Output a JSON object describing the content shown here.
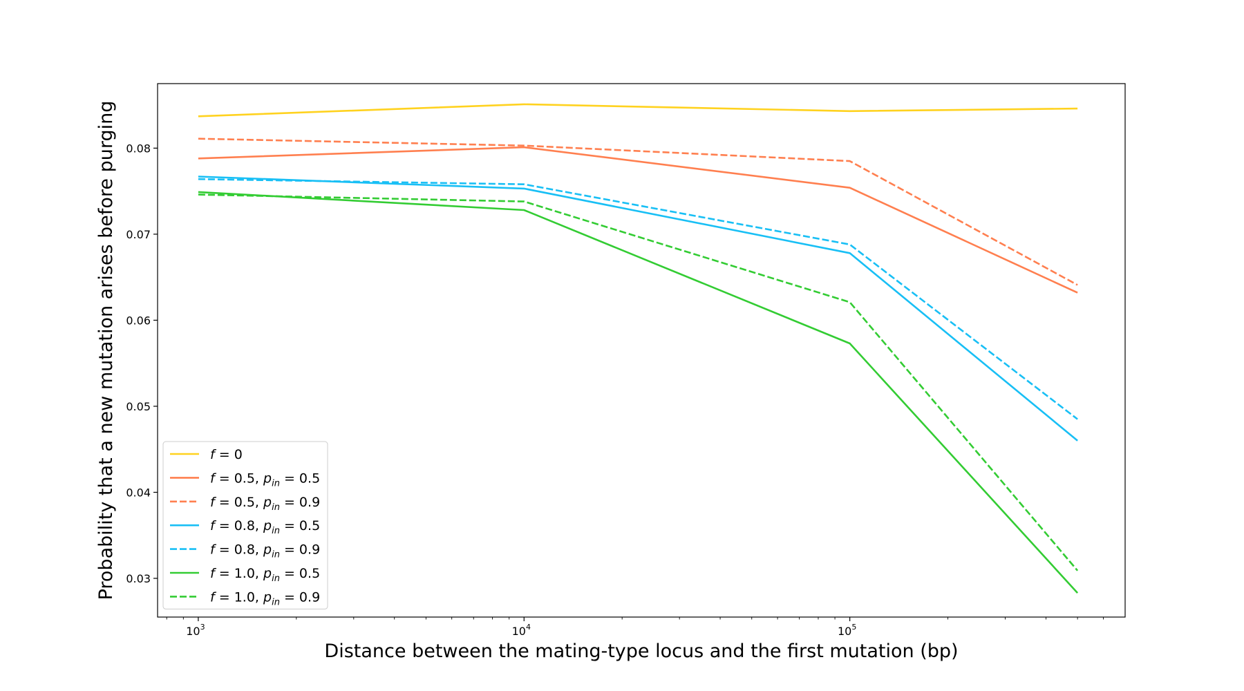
{
  "chart_data": {
    "type": "line",
    "title": "",
    "xlabel": "Distance between the mating-type locus and the first mutation (bp)",
    "ylabel": "Probability that a new mutation arises before purging",
    "x_scale": "log",
    "xlim": [
      750,
      700000
    ],
    "ylim": [
      0.0255,
      0.0875
    ],
    "x_ticks": [
      {
        "value": 1000,
        "base": "10",
        "exp": "3"
      },
      {
        "value": 10000,
        "base": "10",
        "exp": "4"
      },
      {
        "value": 100000,
        "base": "10",
        "exp": "5"
      }
    ],
    "y_ticks": [
      {
        "value": 0.03,
        "label": "0.03"
      },
      {
        "value": 0.04,
        "label": "0.04"
      },
      {
        "value": 0.05,
        "label": "0.05"
      },
      {
        "value": 0.06,
        "label": "0.06"
      },
      {
        "value": 0.07,
        "label": "0.07"
      },
      {
        "value": 0.08,
        "label": "0.08"
      }
    ],
    "grid": false,
    "legend_position": "lower-left",
    "x": [
      1000,
      10000,
      100000,
      500000
    ],
    "series": [
      {
        "f": "0",
        "p": "",
        "color": "#FFD21F",
        "dash": false,
        "values": [
          0.0837,
          0.0851,
          0.0843,
          0.0846
        ]
      },
      {
        "f": "0.5",
        "p": "0.5",
        "color": "#FF7F4F",
        "dash": false,
        "values": [
          0.0788,
          0.0801,
          0.0754,
          0.0632
        ]
      },
      {
        "f": "0.5",
        "p": "0.9",
        "color": "#FF7F4F",
        "dash": true,
        "values": [
          0.0811,
          0.0803,
          0.0785,
          0.0641
        ]
      },
      {
        "f": "0.8",
        "p": "0.5",
        "color": "#18BFF5",
        "dash": false,
        "values": [
          0.0767,
          0.0753,
          0.0678,
          0.046
        ]
      },
      {
        "f": "0.8",
        "p": "0.9",
        "color": "#18BFF5",
        "dash": true,
        "values": [
          0.0764,
          0.0758,
          0.0688,
          0.0485
        ]
      },
      {
        "f": "1.0",
        "p": "0.5",
        "color": "#33CC33",
        "dash": false,
        "values": [
          0.0749,
          0.0728,
          0.0573,
          0.0283
        ]
      },
      {
        "f": "1.0",
        "p": "0.9",
        "color": "#33CC33",
        "dash": true,
        "values": [
          0.0746,
          0.0738,
          0.0621,
          0.0309
        ]
      }
    ]
  }
}
